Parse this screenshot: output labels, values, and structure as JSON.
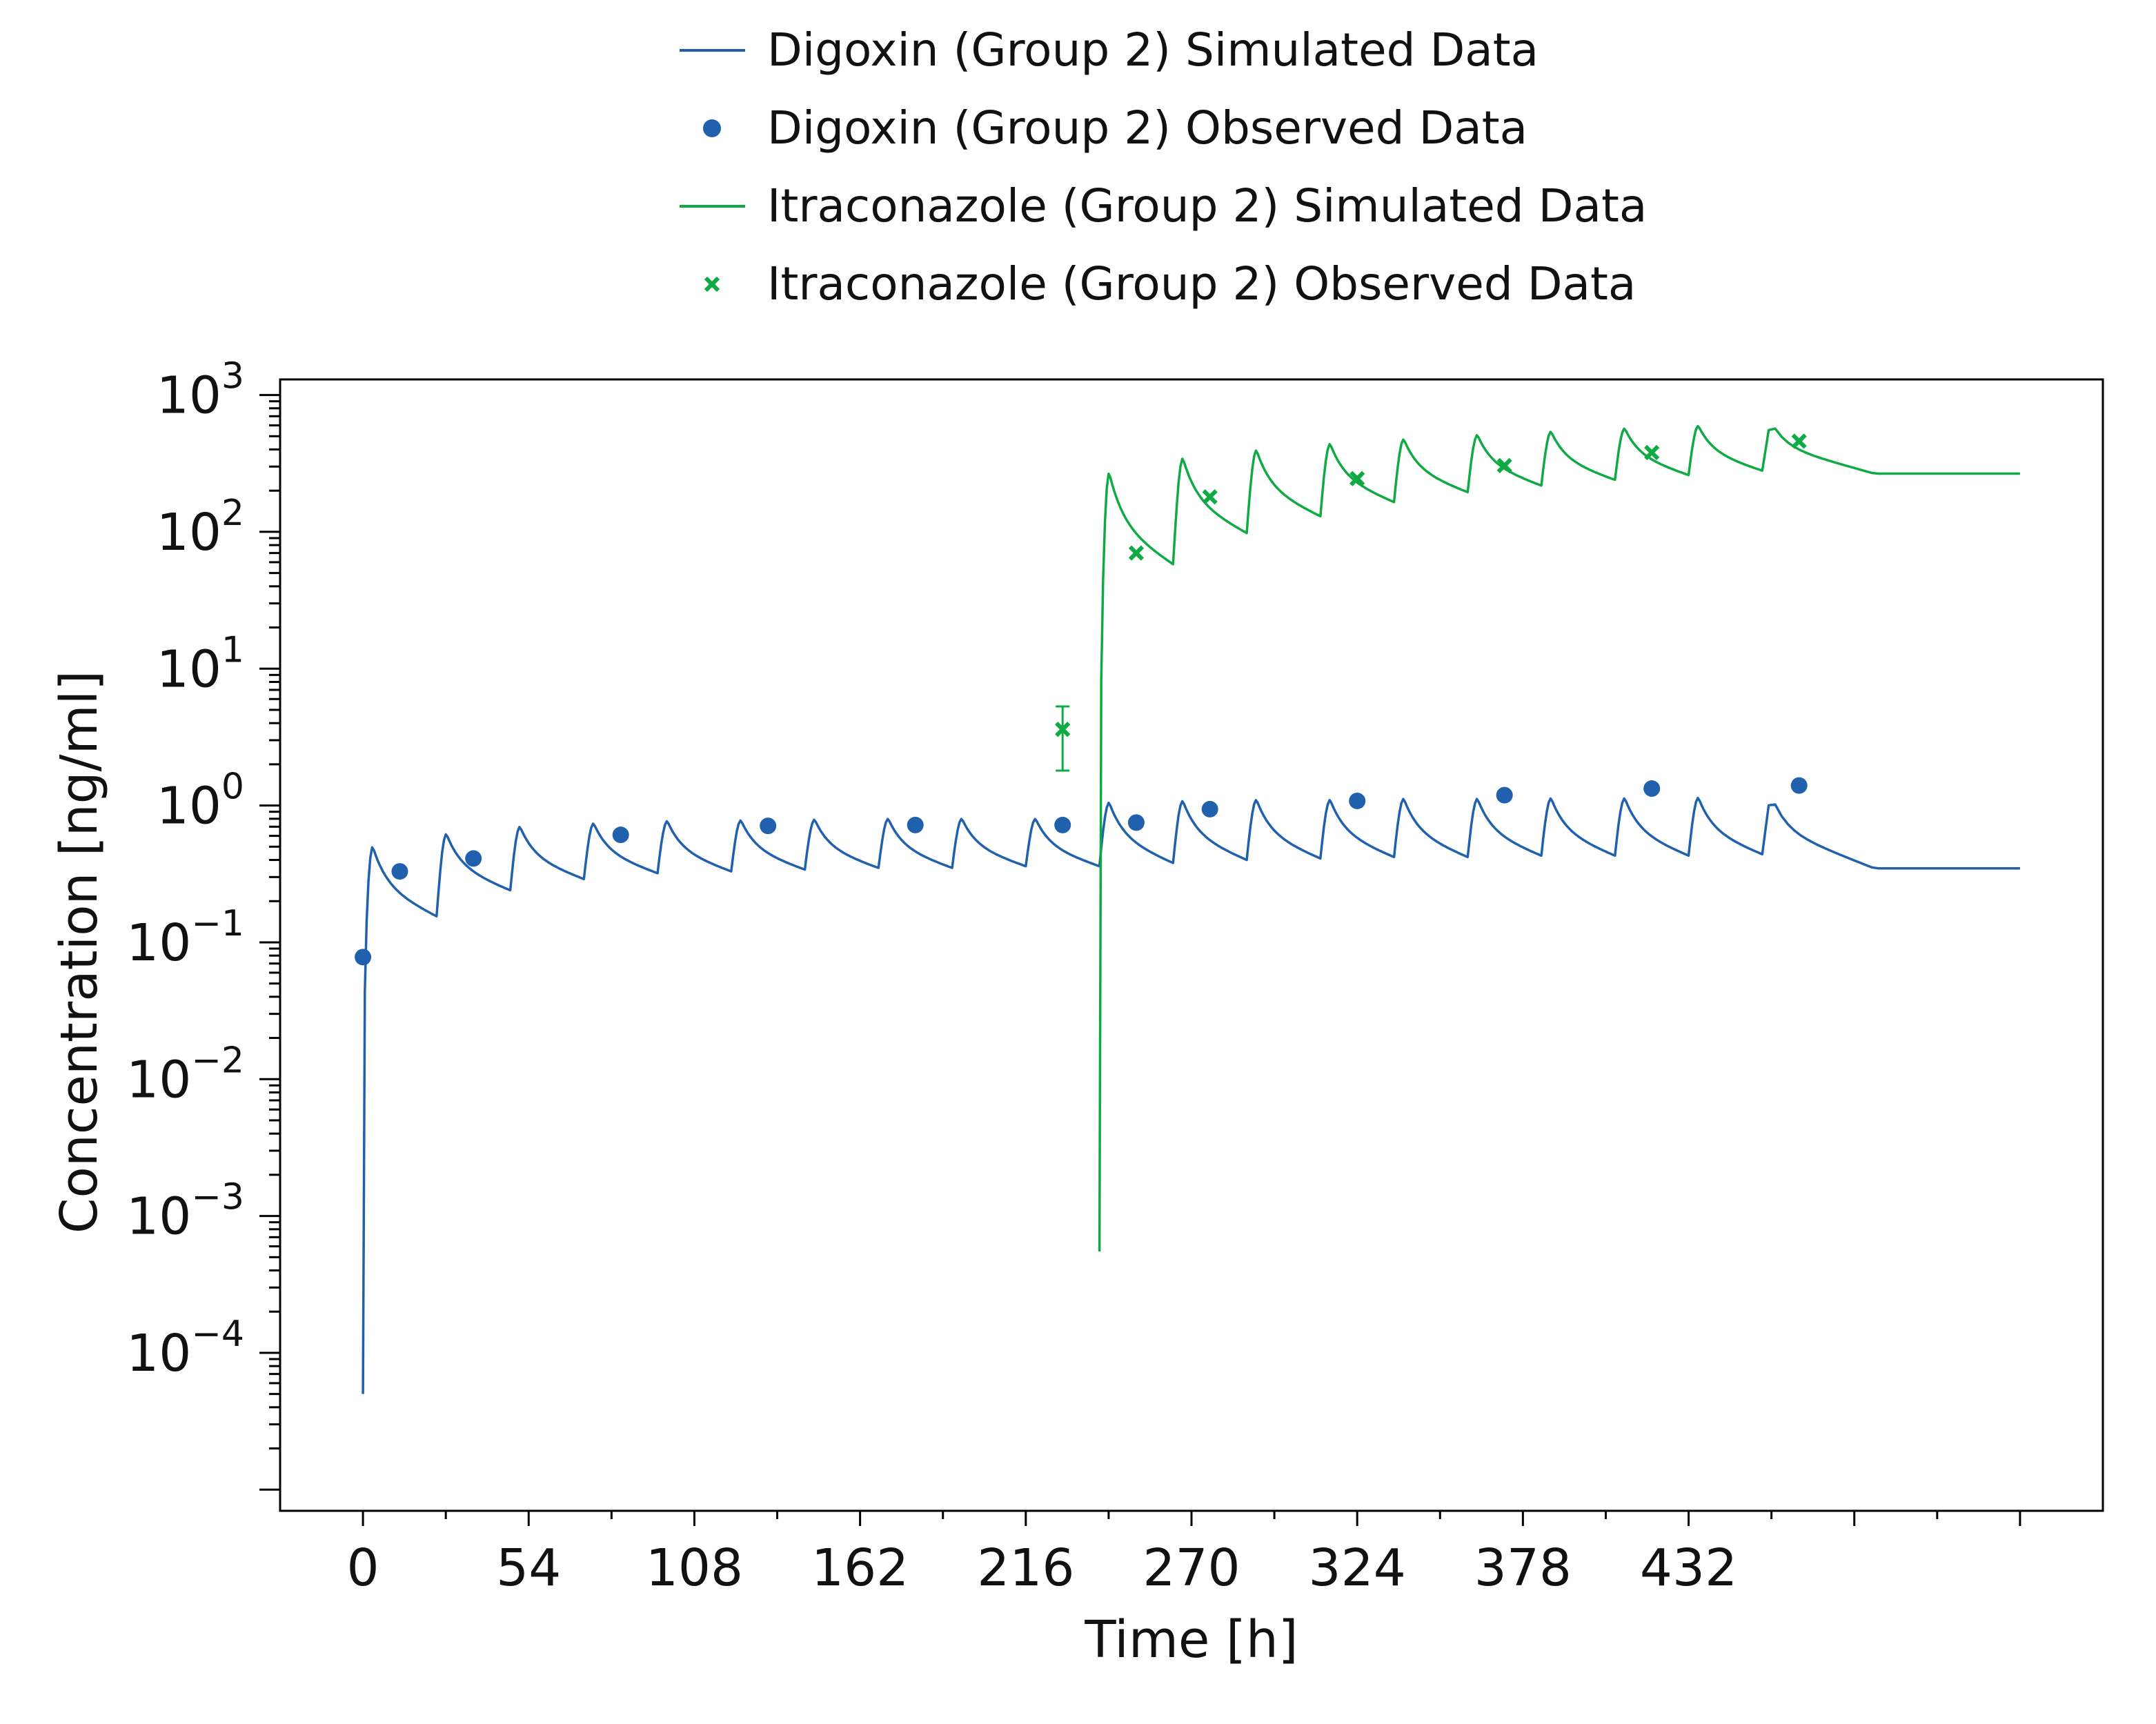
{
  "chart_data": {
    "type": "line",
    "title": "",
    "xlabel": "Time [h]",
    "ylabel": "Concentration [ng/ml]",
    "x_scale": "linear",
    "y_scale": "log",
    "xlim": [
      -27,
      567
    ],
    "ylim": [
      7e-06,
      1300
    ],
    "x_ticks": [
      0,
      54,
      108,
      162,
      216,
      270,
      324,
      378,
      432
    ],
    "x_tick_labels": [
      "0",
      "54",
      "108",
      "162",
      "216",
      "270",
      "324",
      "378",
      "432"
    ],
    "y_ticks": [
      0.0001,
      0.001,
      0.01,
      0.1,
      1,
      10,
      100,
      1000
    ],
    "y_tick_labels": [
      {
        "base": "10",
        "exp": "−4"
      },
      {
        "base": "10",
        "exp": "−3"
      },
      {
        "base": "10",
        "exp": "−2"
      },
      {
        "base": "10",
        "exp": "−1"
      },
      {
        "base": "10",
        "exp": "0"
      },
      {
        "base": "10",
        "exp": "1"
      },
      {
        "base": "10",
        "exp": "2"
      },
      {
        "base": "10",
        "exp": "3"
      }
    ],
    "grid": false,
    "legend_position": "top-center",
    "series": [
      {
        "name": "Digoxin (Group 2) Simulated Data",
        "kind": "line",
        "color": "#2160ad",
        "dosing_interval": 24,
        "dose_times": [
          0,
          24,
          48,
          72,
          96,
          120,
          144,
          168,
          192,
          216,
          240,
          264,
          288,
          312,
          336,
          360,
          384,
          408,
          432,
          456
        ],
        "peaks": [
          0.5,
          0.62,
          0.7,
          0.74,
          0.77,
          0.78,
          0.79,
          0.8,
          0.8,
          0.8,
          1.05,
          1.08,
          1.1,
          1.1,
          1.12,
          1.12,
          1.13,
          1.13,
          1.14,
          1.15
        ],
        "troughs": [
          0.155,
          0.24,
          0.29,
          0.32,
          0.33,
          0.34,
          0.35,
          0.35,
          0.36,
          0.36,
          0.38,
          0.4,
          0.41,
          0.42,
          0.42,
          0.43,
          0.43,
          0.43,
          0.44,
          0.45
        ],
        "start_value": 5e-05,
        "end_time": 540
      },
      {
        "name": "Digoxin (Group 2) Observed Data",
        "kind": "scatter",
        "marker": "circle",
        "color": "#2160ad",
        "x": [
          0,
          12,
          36,
          84,
          132,
          180,
          228,
          252,
          276,
          324,
          372,
          420,
          468
        ],
        "y": [
          0.078,
          0.33,
          0.41,
          0.61,
          0.71,
          0.72,
          0.72,
          0.75,
          0.94,
          1.08,
          1.19,
          1.33,
          1.4
        ],
        "y_err": [
          null,
          null,
          null,
          null,
          null,
          null,
          null,
          null,
          null,
          0.12,
          null,
          null,
          null
        ]
      },
      {
        "name": "Itraconazole (Group 2) Simulated Data",
        "kind": "line",
        "color": "#10aa45",
        "dosing_interval": 24,
        "dose_times": [
          240,
          264,
          288,
          312,
          336,
          360,
          384,
          408,
          432,
          456
        ],
        "peaks": [
          270,
          345,
          395,
          440,
          475,
          510,
          540,
          570,
          595,
          620
        ],
        "troughs": [
          58,
          98,
          130,
          165,
          195,
          218,
          240,
          260,
          280,
          320
        ],
        "start_value": 0.00055,
        "end_time": 540
      },
      {
        "name": "Itraconazole (Group 2) Observed Data",
        "kind": "scatter",
        "marker": "x",
        "color": "#10aa45",
        "x": [
          228,
          252,
          276,
          324,
          372,
          420,
          468
        ],
        "y": [
          3.6,
          70,
          180,
          245,
          305,
          380,
          460
        ],
        "y_err_low": [
          1.8,
          null,
          null,
          null,
          null,
          null,
          null
        ],
        "y_err_high": [
          5.3,
          null,
          null,
          null,
          null,
          null,
          null
        ]
      }
    ]
  }
}
